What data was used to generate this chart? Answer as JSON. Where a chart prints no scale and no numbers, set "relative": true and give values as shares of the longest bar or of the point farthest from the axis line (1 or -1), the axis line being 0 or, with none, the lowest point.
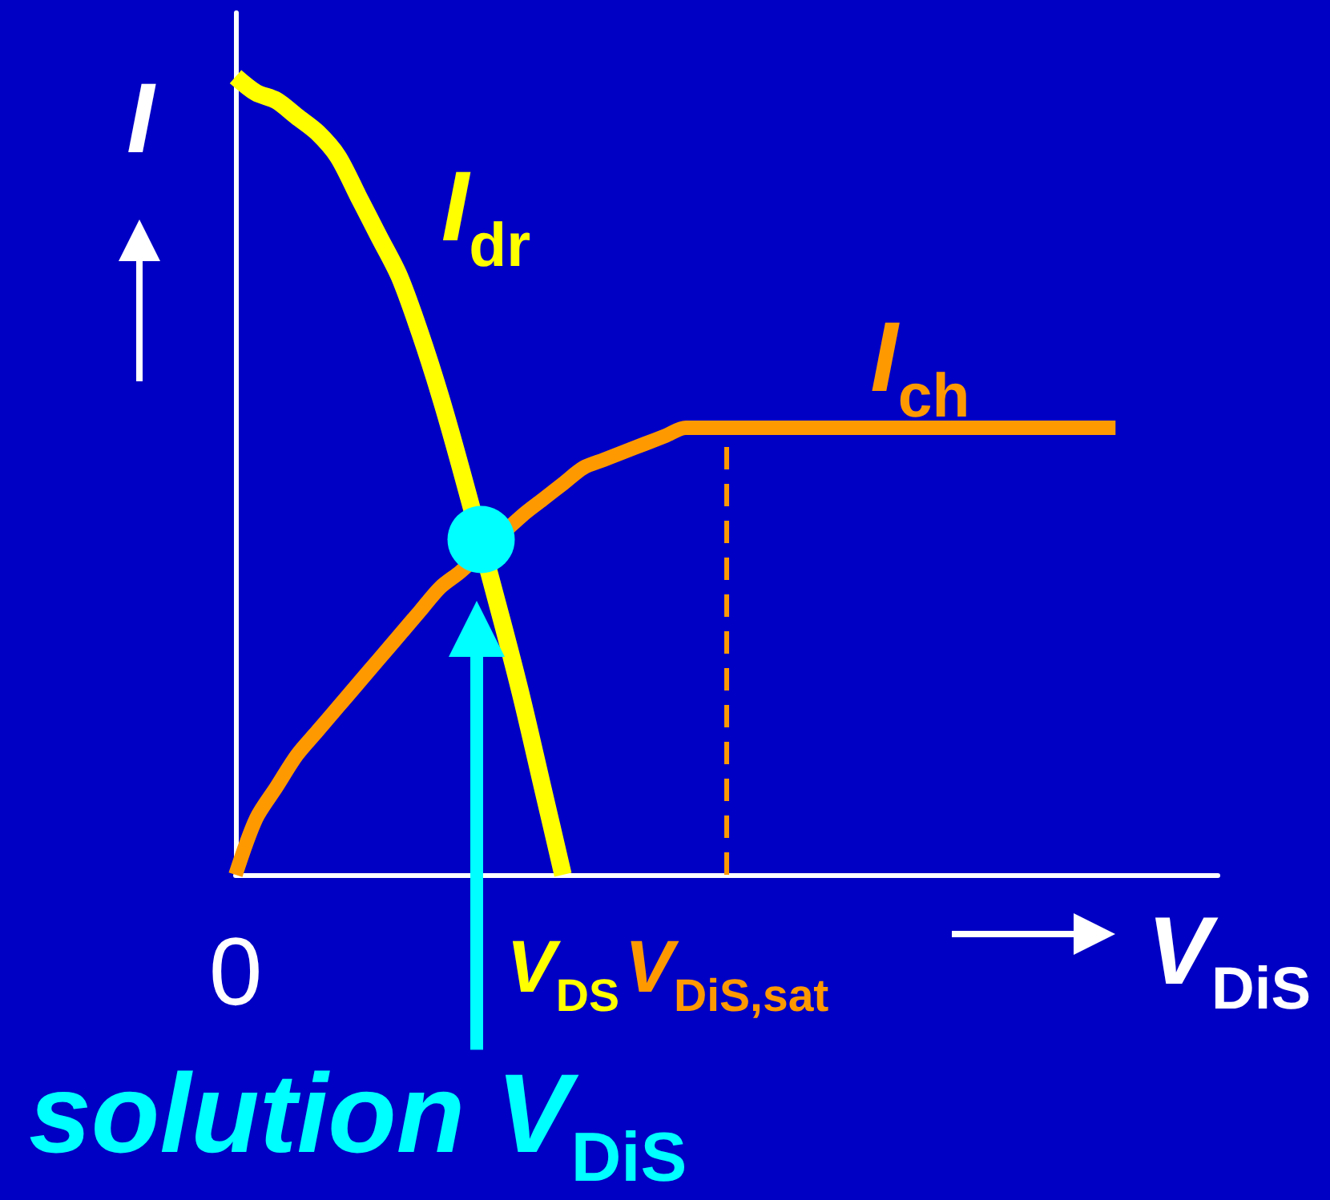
{
  "chart_data": {
    "type": "line",
    "relative": true,
    "categories": [
      "0",
      null,
      null,
      null,
      null,
      null,
      null,
      null,
      null,
      null,
      null,
      null,
      null,
      null,
      null,
      null,
      "V$_{DS}$",
      null,
      null,
      null,
      null,
      null,
      null,
      null,
      "V$_{DiS,sat}$",
      null,
      null,
      null,
      null,
      null,
      null,
      null,
      null,
      null,
      null,
      null,
      null,
      null,
      null,
      null,
      null,
      null,
      null,
      null,
      null,
      null,
      null,
      null,
      null
    ],
    "xlabel": "V$_{DiS}$",
    "ylabel": "I",
    "series": [
      {
        "name": "I$_{dr}$",
        "color": "#ffff00",
        "values": [
          1,
          0.98,
          0.97,
          0.95,
          0.93,
          0.9,
          0.85,
          0.8,
          0.75,
          0.68,
          0.6,
          0.51,
          null,
          0.32,
          0.22,
          0.11,
          0,
          null,
          null,
          null,
          null,
          null,
          null,
          null,
          null,
          null,
          null,
          null,
          null,
          null,
          null,
          null,
          null,
          null,
          null,
          null,
          null,
          null,
          null,
          null,
          null,
          null,
          null,
          null,
          null,
          null,
          null,
          null,
          null
        ]
      },
      {
        "name": "I$_{ch}$",
        "color": "#ff9900",
        "values": [
          0,
          0.07,
          0.11,
          0.15,
          0.18,
          0.21,
          0.24,
          0.27,
          0.3,
          0.33,
          0.36,
          0.38,
          null,
          null,
          0.45,
          0.47,
          0.49,
          0.51,
          0.52,
          0.53,
          0.54,
          0.55,
          0.56,
          0.56,
          0.56,
          0.56,
          0.56,
          0.56,
          0.56,
          0.56,
          0.56,
          0.56,
          0.56,
          0.56,
          0.56,
          0.56,
          0.56,
          0.56,
          0.56,
          0.56,
          0.56,
          0.56,
          0.56,
          0.56,
          null,
          null,
          null,
          null,
          null
        ]
      },
      {
        "type": "scatter",
        "color": "#00ffff",
        "values": [
          null,
          null,
          null,
          null,
          null,
          null,
          null,
          null,
          null,
          null,
          null,
          null,
          0.42,
          null,
          null,
          null,
          null,
          null,
          null,
          null,
          null,
          null,
          null,
          null,
          null,
          null,
          null,
          null,
          null,
          null,
          null,
          null,
          null,
          null,
          null,
          null,
          null,
          null,
          null,
          null,
          null,
          null,
          null,
          null,
          null,
          null,
          null,
          null,
          null
        ]
      }
    ],
    "ref_lines": [
      {
        "axis": "x",
        "value": "V$_{DiS,sat}$",
        "color": "#ff9900",
        "line_style": "dashed"
      }
    ],
    "annotations": [
      "solution V$_{DiS}$"
    ]
  }
}
